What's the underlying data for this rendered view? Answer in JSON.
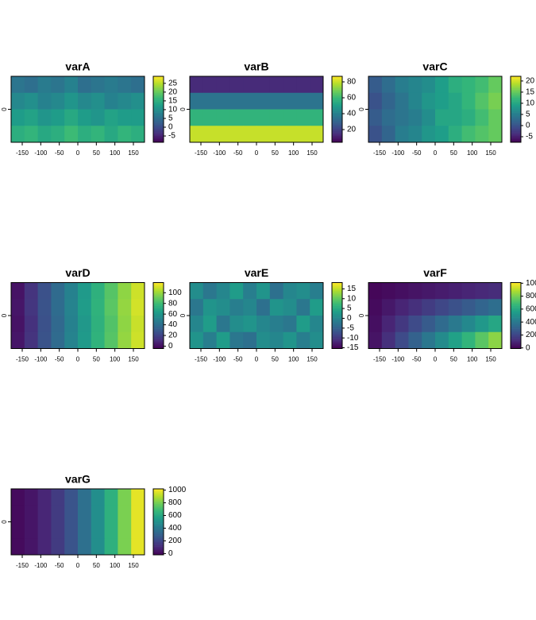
{
  "chart_data": [
    {
      "type": "heatmap",
      "title": "varA",
      "colormap": "viridis",
      "xlim": [
        -180,
        180
      ],
      "ylim": [
        -90,
        90
      ],
      "xticks": [
        -150,
        -100,
        -50,
        0,
        50,
        100,
        150
      ],
      "yticks": [
        0
      ],
      "clim": [
        -8.6,
        29
      ],
      "cticks": [
        -5,
        0,
        5,
        10,
        15,
        20,
        25
      ],
      "values": [
        [
          6,
          5,
          7,
          6,
          8,
          5,
          6,
          7,
          6,
          5
        ],
        [
          9,
          10,
          8,
          9,
          11,
          9,
          10,
          8,
          9,
          10
        ],
        [
          12,
          13,
          11,
          12,
          14,
          12,
          11,
          13,
          12,
          12
        ],
        [
          15,
          16,
          14,
          15,
          17,
          15,
          16,
          14,
          16,
          15
        ]
      ]
    },
    {
      "type": "heatmap",
      "title": "varB",
      "colormap": "viridis",
      "xlim": [
        -180,
        180
      ],
      "ylim": [
        -90,
        90
      ],
      "xticks": [
        -150,
        -100,
        -50,
        0,
        50,
        100,
        150
      ],
      "yticks": [
        0
      ],
      "clim": [
        4,
        87
      ],
      "cticks": [
        20,
        40,
        60,
        80
      ],
      "values": [
        [
          14,
          14,
          14,
          14,
          14,
          14,
          14,
          14,
          14,
          14
        ],
        [
          36,
          36,
          36,
          36,
          36,
          36,
          36,
          36,
          36,
          36
        ],
        [
          58,
          58,
          58,
          58,
          58,
          58,
          58,
          58,
          58,
          58
        ],
        [
          80,
          80,
          80,
          80,
          80,
          80,
          80,
          80,
          80,
          80
        ]
      ]
    },
    {
      "type": "heatmap",
      "title": "varC",
      "colormap": "viridis",
      "xlim": [
        -180,
        180
      ],
      "ylim": [
        -90,
        90
      ],
      "xticks": [
        -150,
        -100,
        -50,
        0,
        50,
        100,
        150
      ],
      "yticks": [
        0
      ],
      "clim": [
        -7.5,
        22.1
      ],
      "cticks": [
        -5,
        0,
        5,
        10,
        15,
        20
      ],
      "values": [
        [
          1,
          3,
          5,
          6,
          7,
          9,
          11,
          12,
          13,
          15
        ],
        [
          0,
          2,
          4,
          6,
          8,
          9,
          10,
          12,
          14,
          16
        ],
        [
          1,
          3,
          4,
          5,
          7,
          10,
          10,
          11,
          13,
          15
        ],
        [
          0,
          2,
          5,
          6,
          8,
          9,
          11,
          13,
          14,
          15
        ]
      ]
    },
    {
      "type": "heatmap",
      "title": "varD",
      "colormap": "viridis",
      "xlim": [
        -180,
        180
      ],
      "ylim": [
        -90,
        90
      ],
      "xticks": [
        -150,
        -100,
        -50,
        0,
        50,
        100,
        150
      ],
      "yticks": [
        0
      ],
      "clim": [
        -4.5,
        119
      ],
      "cticks": [
        0,
        20,
        40,
        60,
        80,
        100
      ],
      "values": [
        [
          2,
          14,
          26,
          38,
          50,
          62,
          74,
          86,
          98,
          110
        ],
        [
          3,
          15,
          27,
          39,
          51,
          63,
          75,
          87,
          99,
          111
        ],
        [
          2,
          13,
          26,
          37,
          50,
          61,
          74,
          85,
          98,
          109
        ],
        [
          3,
          14,
          27,
          38,
          51,
          62,
          75,
          86,
          99,
          110
        ]
      ]
    },
    {
      "type": "heatmap",
      "title": "varE",
      "colormap": "viridis",
      "xlim": [
        -180,
        180
      ],
      "ylim": [
        -90,
        90
      ],
      "xticks": [
        -150,
        -100,
        -50,
        0,
        50,
        100,
        150
      ],
      "yticks": [
        0
      ],
      "clim": [
        -15.4,
        18.2
      ],
      "cticks": [
        -15,
        -10,
        -5,
        0,
        5,
        10,
        15
      ],
      "values": [
        [
          1,
          -2,
          0,
          3,
          -1,
          2,
          -3,
          0,
          1,
          -1
        ],
        [
          -2,
          2,
          1,
          -1,
          0,
          -3,
          2,
          1,
          -2,
          3
        ],
        [
          0,
          3,
          -2,
          1,
          2,
          0,
          -1,
          -2,
          3,
          0
        ],
        [
          2,
          -1,
          3,
          -2,
          -3,
          1,
          0,
          2,
          -1,
          1
        ]
      ]
    },
    {
      "type": "heatmap",
      "title": "varF",
      "colormap": "viridis",
      "xlim": [
        -180,
        180
      ],
      "ylim": [
        -90,
        90
      ],
      "xticks": [
        -150,
        -100,
        -50,
        0,
        50,
        100,
        150
      ],
      "yticks": [
        0
      ],
      "clim": [
        -10,
        1010
      ],
      "cticks": [
        0,
        200,
        400,
        600,
        800,
        1000
      ],
      "values": [
        [
          6,
          19,
          31,
          44,
          56,
          69,
          81,
          94,
          106,
          119
        ],
        [
          19,
          56,
          94,
          131,
          169,
          206,
          244,
          281,
          319,
          356
        ],
        [
          31,
          94,
          156,
          219,
          281,
          344,
          406,
          469,
          531,
          594
        ],
        [
          44,
          131,
          219,
          306,
          394,
          481,
          569,
          656,
          744,
          831
        ]
      ]
    },
    {
      "type": "heatmap",
      "title": "varG",
      "colormap": "viridis",
      "xlim": [
        -180,
        180
      ],
      "ylim": [
        -90,
        90
      ],
      "xticks": [
        -150,
        -100,
        -50,
        0,
        50,
        100,
        150
      ],
      "yticks": [
        0
      ],
      "clim": [
        -20,
        1020
      ],
      "cticks": [
        0,
        200,
        400,
        600,
        800,
        1000
      ],
      "values": [
        [
          10,
          40,
          90,
          160,
          250,
          360,
          490,
          640,
          810,
          980
        ],
        [
          10,
          40,
          90,
          160,
          250,
          360,
          490,
          640,
          810,
          980
        ],
        [
          10,
          40,
          90,
          160,
          250,
          360,
          490,
          640,
          810,
          980
        ],
        [
          10,
          40,
          90,
          160,
          250,
          360,
          490,
          640,
          810,
          980
        ]
      ]
    }
  ]
}
